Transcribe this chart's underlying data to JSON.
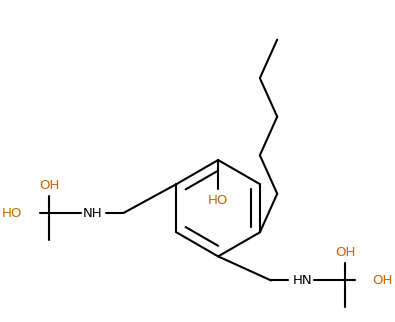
{
  "line_color": "#000000",
  "oh_color": "#cc6600",
  "background": "#ffffff",
  "linewidth": 1.5,
  "fontsize": 9.5,
  "figsize": [
    3.95,
    3.22
  ],
  "dpi": 100,
  "xlim": [
    0,
    395
  ],
  "ylim": [
    0,
    322
  ]
}
